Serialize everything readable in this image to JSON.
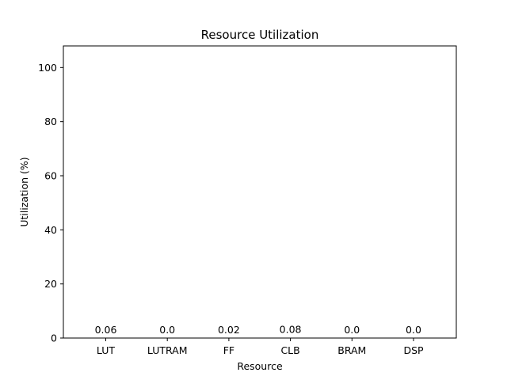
{
  "chart_data": {
    "type": "bar",
    "title": "Resource Utilization",
    "xlabel": "Resource",
    "ylabel": "Utilization (%)",
    "categories": [
      "LUT",
      "LUTRAM",
      "FF",
      "CLB",
      "BRAM",
      "DSP"
    ],
    "values": [
      0.06,
      0.0,
      0.02,
      0.08,
      0.0,
      0.0
    ],
    "value_labels": [
      "0.06",
      "0.0",
      "0.02",
      "0.08",
      "0.0",
      "0.0"
    ],
    "ylim": [
      0,
      108
    ],
    "yticks": [
      0,
      20,
      40,
      60,
      80,
      100
    ],
    "grid": false,
    "legend": "none",
    "bar_color": "#1f77b4"
  }
}
